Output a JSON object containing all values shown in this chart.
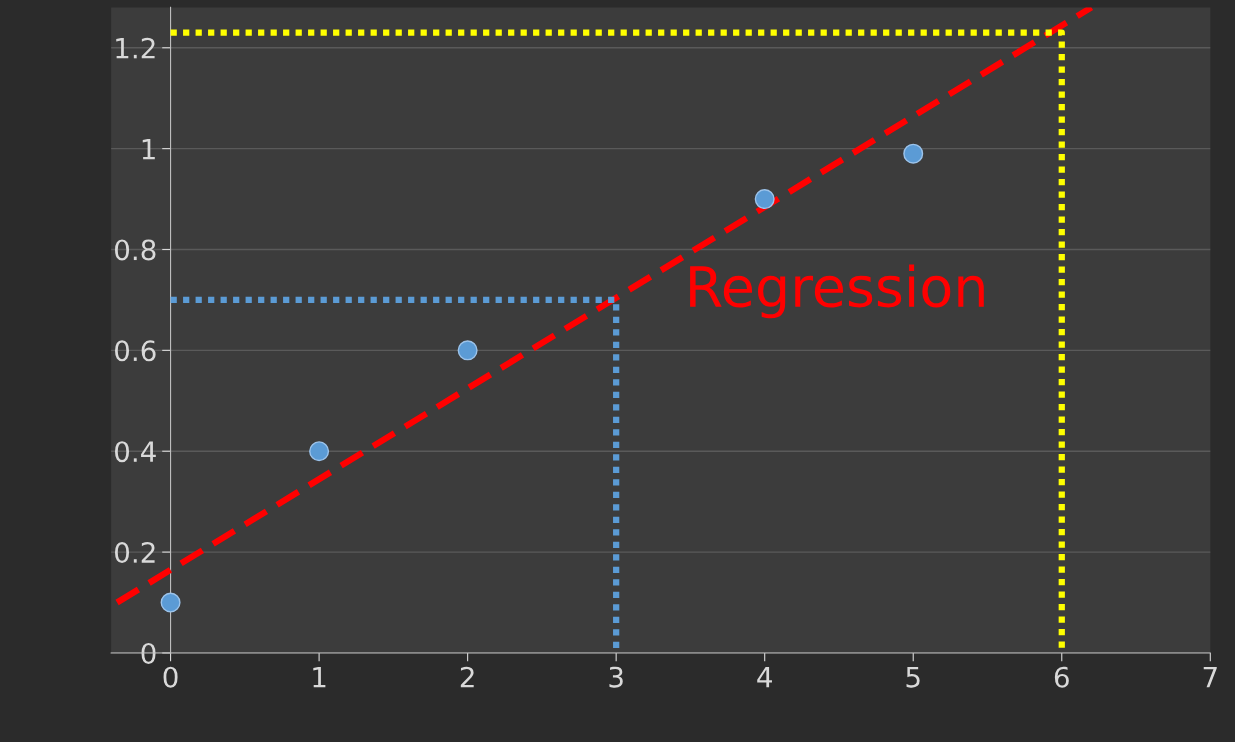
{
  "chart_data": {
    "type": "scatter",
    "series": [
      {
        "color": "#5b9bd5",
        "marker": "circle",
        "x": [
          0,
          1,
          2,
          4,
          5
        ],
        "values": [
          0.1,
          0.4,
          0.6,
          0.9,
          0.99
        ]
      },
      {
        "type": "line",
        "color": "#ff0000",
        "line_style": "dashed",
        "marker": "none",
        "x": [
          -0.36,
          6.2
        ],
        "values": [
          0.1,
          1.28
        ]
      },
      {
        "type": "line",
        "color": "#5b9bd5",
        "line_style": "dotted",
        "marker": "none",
        "x": [
          0,
          3,
          3
        ],
        "values": [
          0.7,
          0.7,
          0
        ]
      },
      {
        "type": "line",
        "color": "#ffff00",
        "line_style": "dotted",
        "marker": "none",
        "x": [
          0,
          6,
          6
        ],
        "values": [
          1.23,
          1.23,
          0
        ]
      }
    ],
    "annotations": [
      "Regression"
    ],
    "xlim": [
      -0.4,
      7
    ],
    "ylim": [
      0,
      1.28
    ],
    "xticks": [
      0,
      1,
      2,
      3,
      4,
      5,
      6,
      7
    ],
    "yticks": [
      0,
      0.2,
      0.4,
      0.6,
      0.8,
      1,
      1.2
    ],
    "grid": "y"
  }
}
